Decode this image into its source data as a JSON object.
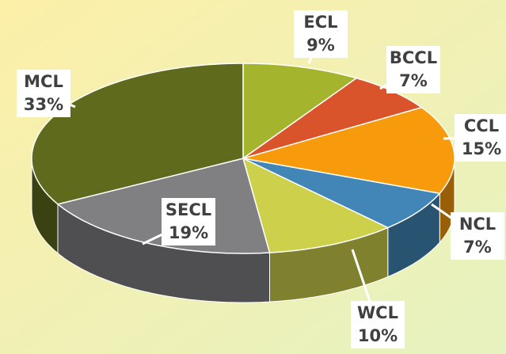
{
  "chart_data": {
    "type": "pie3d",
    "categories": [
      "ECL",
      "BCCL",
      "CCL",
      "NCL",
      "WCL",
      "SECL",
      "MCL"
    ],
    "values": [
      9,
      7,
      15,
      7,
      10,
      19,
      33
    ],
    "value_labels": [
      "9%",
      "7%",
      "15%",
      "7%",
      "10%",
      "19%",
      "33%"
    ],
    "colors": [
      "#a4b42c",
      "#d9542a",
      "#f79a0c",
      "#4186b6",
      "#cdd04a",
      "#808082",
      "#5f6a1d"
    ]
  }
}
